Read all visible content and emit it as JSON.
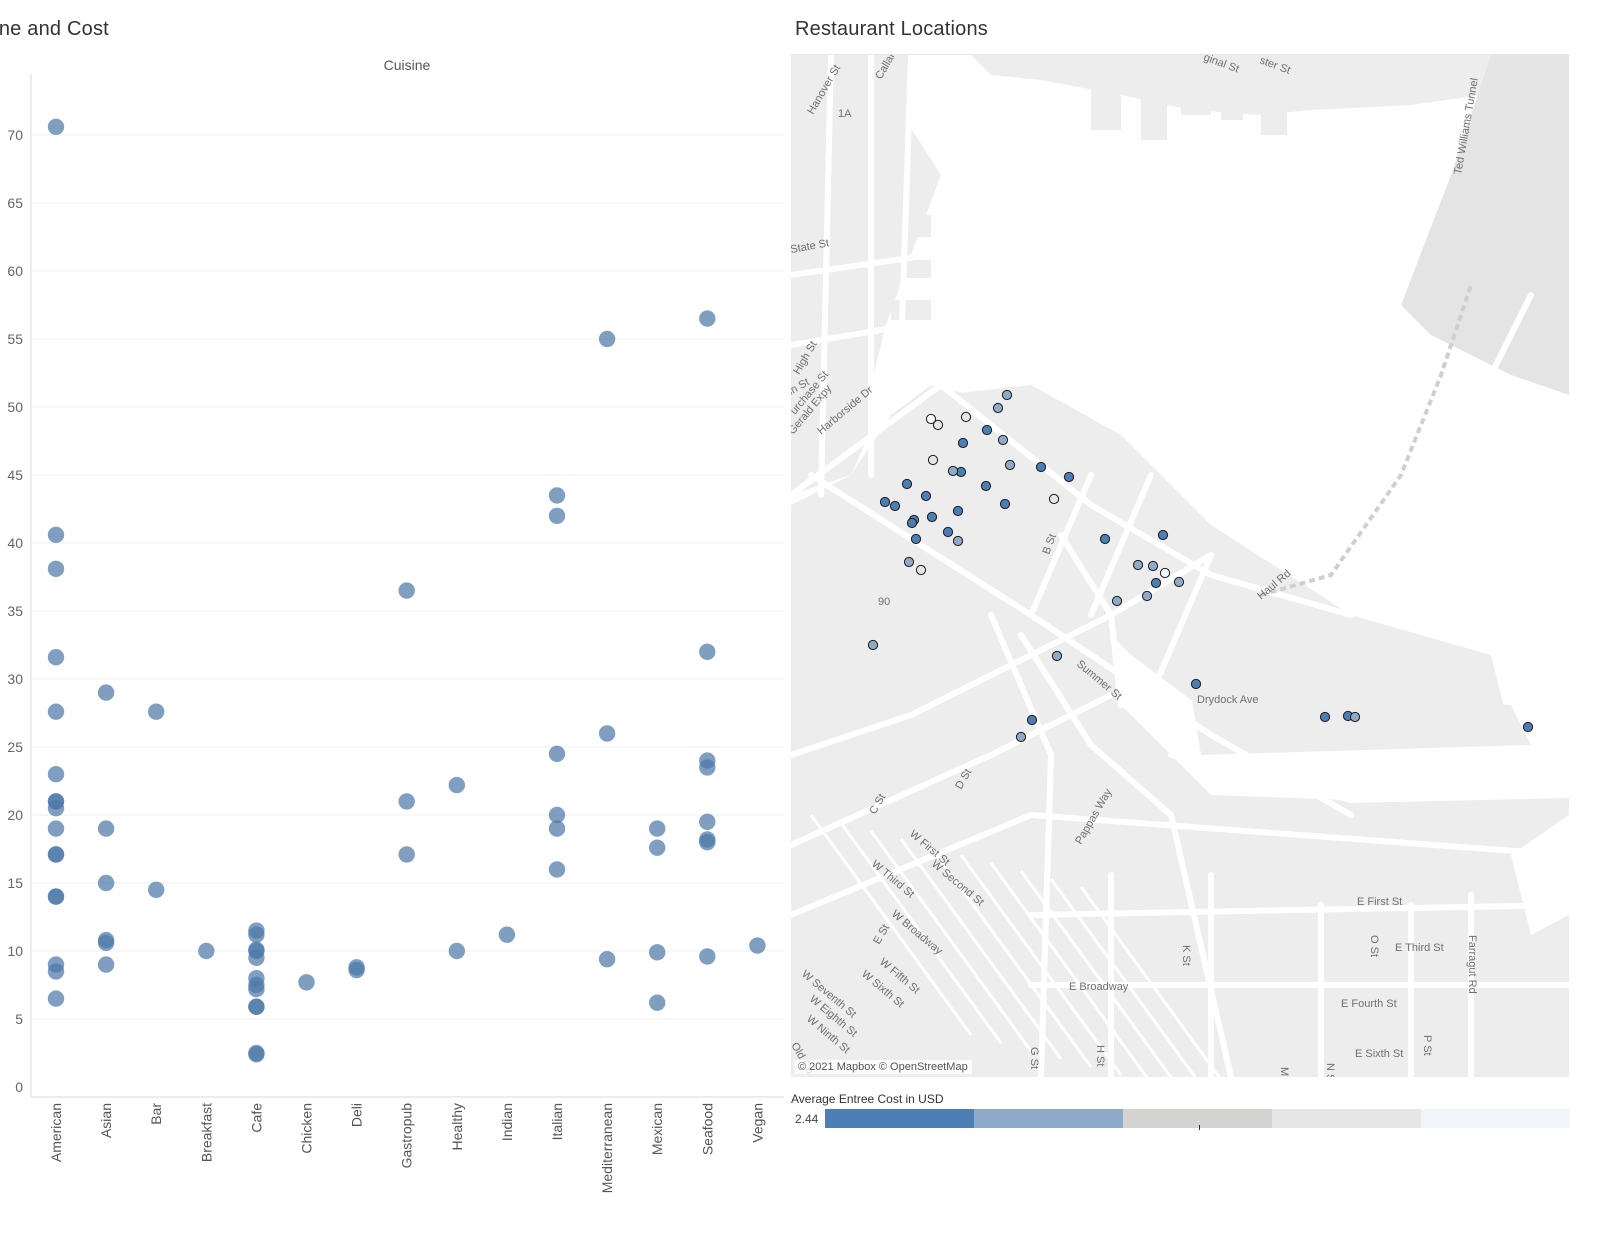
{
  "scatter": {
    "title": "sine and Cost",
    "column_header": "Cuisine",
    "color": "#4e79a7"
  },
  "map": {
    "title": "Restaurant Locations",
    "attribution": "© 2021 Mapbox © OpenStreetMap",
    "road_color": "#ffffff",
    "water_color": "#ffffff",
    "land_color": "#ededed",
    "street_labels": [
      "Hanover St",
      "Callah",
      "State St",
      "High St",
      "urchase St",
      "Gerald Expy",
      "Harborside Dr",
      "Ted Williams Tunnel",
      "Haul Rd",
      "B St",
      "Summer St",
      "Drydock Ave",
      "D St",
      "C St",
      "W First St",
      "W Second St",
      "W Third St",
      "W Broadway",
      "E St",
      "W Fifth St",
      "W Sixth St",
      "W Seventh St",
      "W Eighth St",
      "W Ninth St",
      "Pappas Way",
      "E First St",
      "E Third St",
      "E Broadway",
      "E Fourth St",
      "E Sixth St",
      "K St",
      "O St",
      "P St",
      "G St",
      "H St",
      "M",
      "N S",
      "Farragut Rd",
      "Old Co",
      "1A",
      "90",
      "ginal St",
      "ster St",
      "in St"
    ]
  },
  "legend": {
    "title": "Average Entree Cost in USD",
    "min_label": "2.44",
    "colors": [
      "#4a7eb5",
      "#8eaac8",
      "#d4d3d1",
      "#e6e6e6",
      "#f2f6fb"
    ]
  },
  "chart_data": [
    {
      "type": "scatter",
      "title": "sine and Cost",
      "xlabel": "Cuisine",
      "ylabel": "",
      "categories": [
        "American",
        "Asian",
        "Bar",
        "Breakfast",
        "Cafe",
        "Chicken",
        "Deli",
        "Gastropub",
        "Healthy",
        "Indian",
        "Italian",
        "Mediterranean",
        "Mexican",
        "Seafood",
        "Vegan"
      ],
      "ylim": [
        0,
        74
      ],
      "yticks": [
        0,
        5,
        10,
        15,
        20,
        25,
        30,
        35,
        40,
        45,
        50,
        55,
        60,
        65,
        70
      ],
      "points": [
        [
          "American",
          70.6
        ],
        [
          "American",
          40.6
        ],
        [
          "American",
          38.1
        ],
        [
          "American",
          31.6
        ],
        [
          "American",
          27.6
        ],
        [
          "American",
          23.0
        ],
        [
          "American",
          21.0
        ],
        [
          "American",
          21.0
        ],
        [
          "American",
          20.5
        ],
        [
          "American",
          19.0
        ],
        [
          "American",
          17.1
        ],
        [
          "American",
          17.1
        ],
        [
          "American",
          14.0
        ],
        [
          "American",
          14.0
        ],
        [
          "American",
          9.0
        ],
        [
          "American",
          8.5
        ],
        [
          "American",
          6.5
        ],
        [
          "Asian",
          29.0
        ],
        [
          "Asian",
          19.0
        ],
        [
          "Asian",
          15.0
        ],
        [
          "Asian",
          10.8
        ],
        [
          "Asian",
          10.6
        ],
        [
          "Asian",
          9.0
        ],
        [
          "Bar",
          27.6
        ],
        [
          "Bar",
          14.5
        ],
        [
          "Breakfast",
          10.0
        ],
        [
          "Cafe",
          11.5
        ],
        [
          "Cafe",
          11.2
        ],
        [
          "Cafe",
          10.1
        ],
        [
          "Cafe",
          10.0
        ],
        [
          "Cafe",
          9.5
        ],
        [
          "Cafe",
          8.0
        ],
        [
          "Cafe",
          7.5
        ],
        [
          "Cafe",
          7.2
        ],
        [
          "Cafe",
          5.9
        ],
        [
          "Cafe",
          5.9
        ],
        [
          "Cafe",
          2.5
        ],
        [
          "Cafe",
          2.4
        ],
        [
          "Chicken",
          7.7
        ],
        [
          "Deli",
          8.8
        ],
        [
          "Deli",
          8.6
        ],
        [
          "Gastropub",
          36.5
        ],
        [
          "Gastropub",
          21.0
        ],
        [
          "Gastropub",
          17.1
        ],
        [
          "Healthy",
          22.2
        ],
        [
          "Healthy",
          10.0
        ],
        [
          "Indian",
          11.2
        ],
        [
          "Italian",
          43.5
        ],
        [
          "Italian",
          42.0
        ],
        [
          "Italian",
          24.5
        ],
        [
          "Italian",
          20.0
        ],
        [
          "Italian",
          19.0
        ],
        [
          "Italian",
          16.0
        ],
        [
          "Mediterranean",
          55.0
        ],
        [
          "Mediterranean",
          26.0
        ],
        [
          "Mediterranean",
          9.4
        ],
        [
          "Mexican",
          19.0
        ],
        [
          "Mexican",
          17.6
        ],
        [
          "Mexican",
          9.9
        ],
        [
          "Mexican",
          6.2
        ],
        [
          "Seafood",
          56.5
        ],
        [
          "Seafood",
          32.0
        ],
        [
          "Seafood",
          24.0
        ],
        [
          "Seafood",
          23.5
        ],
        [
          "Seafood",
          19.5
        ],
        [
          "Seafood",
          18.2
        ],
        [
          "Seafood",
          18.0
        ],
        [
          "Seafood",
          9.6
        ],
        [
          "Vegan",
          10.4
        ]
      ],
      "grid": true,
      "legend": "none"
    },
    {
      "type": "scatter",
      "title": "Restaurant Locations",
      "xlabel": "",
      "ylabel": "",
      "color_scale": {
        "title": "Average Entree Cost in USD",
        "min": 2.44
      },
      "point_colors": [
        "#4a7eb5",
        "#8eaac8",
        "#d4d3d1",
        "#e6e6e6",
        "#f2f6fb"
      ],
      "grid": false,
      "legend": "bottom"
    }
  ]
}
